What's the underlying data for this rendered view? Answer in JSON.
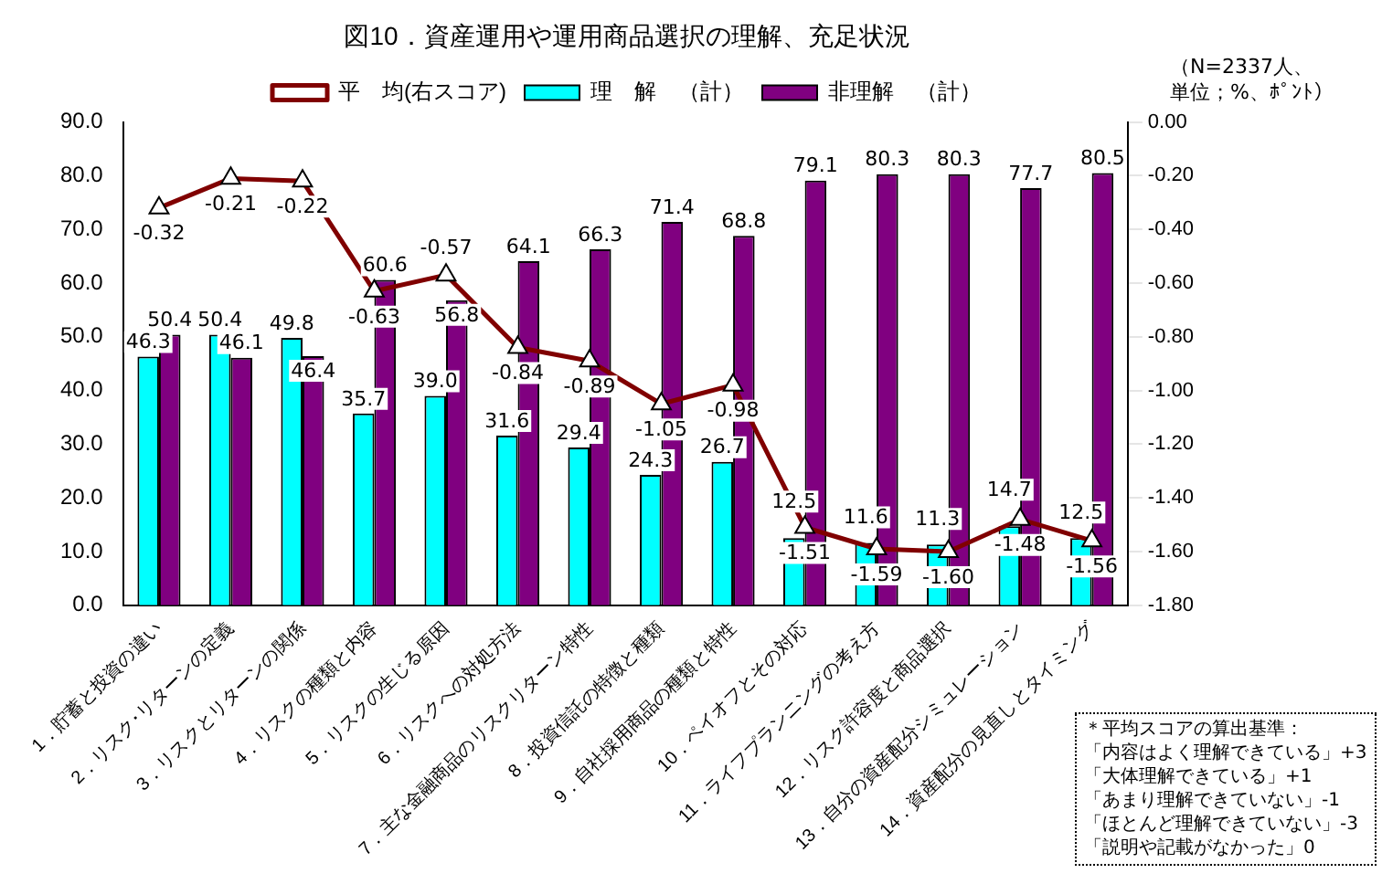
{
  "chart_data": {
    "type": "bar",
    "title": "図10．資産運用や運用商品選択の理解、充足状況",
    "categories": [
      "1．貯蓄と投資の違い",
      "2．リスク･リターンの定義",
      "3．リスクとリターンの関係",
      "4．リスクの種類と内容",
      "5．リスクの生じる原因",
      "6．リスクへの対処方法",
      "7．主な金融商品のリスクリターン特性",
      "8．投資信託の特徴と種類",
      "9．自社採用商品の種類と特性",
      "10．ペイオフとその対応",
      "11．ライフプランニングの考え方",
      "12．リスク許容度と商品選択",
      "13．自分の資産配分シミュレーション",
      "14．資産配分の見直しとタイミング"
    ],
    "series": [
      {
        "name": "理　解　（計）",
        "color": "#00ffff",
        "values": [
          46.3,
          50.4,
          49.8,
          35.7,
          39.0,
          31.6,
          29.4,
          24.3,
          26.7,
          12.5,
          11.6,
          11.3,
          14.7,
          12.5
        ],
        "value_labels": [
          "46.3",
          "50.4",
          "49.8",
          "35.7",
          "39.0",
          "31.6",
          "29.4",
          "24.3",
          "26.7",
          "12.5",
          "11.6",
          "11.3",
          "14.7",
          "12.5"
        ]
      },
      {
        "name": "非理解　（計）",
        "color": "#800080",
        "values": [
          50.4,
          46.1,
          46.4,
          60.6,
          56.8,
          64.1,
          66.3,
          71.4,
          68.8,
          79.1,
          80.3,
          80.3,
          77.7,
          80.5
        ],
        "value_labels": [
          "50.4",
          "46.1",
          "46.4",
          "60.6",
          "56.8",
          "64.1",
          "66.3",
          "71.4",
          "68.8",
          "79.1",
          "80.3",
          "80.3",
          "77.7",
          "80.5"
        ]
      },
      {
        "name": "平　均(右スコア)",
        "type": "line",
        "axis": "y2",
        "color": "#800000",
        "values": [
          -0.32,
          -0.21,
          -0.22,
          -0.63,
          -0.57,
          -0.84,
          -0.89,
          -1.05,
          -0.98,
          -1.51,
          -1.59,
          -1.6,
          -1.48,
          -1.56
        ],
        "value_labels": [
          "-0.32",
          "-0.21",
          "-0.22",
          "-0.63",
          "-0.57",
          "-0.84",
          "-0.89",
          "-1.05",
          "-0.98",
          "-1.51",
          "-1.59",
          "-1.60",
          "-1.48",
          "-1.56"
        ]
      }
    ],
    "ylim": [
      0,
      90
    ],
    "yticks": [
      {
        "value": 0,
        "label": "0.0"
      },
      {
        "value": 10,
        "label": "10.0"
      },
      {
        "value": 20,
        "label": "20.0"
      },
      {
        "value": 30,
        "label": "30.0"
      },
      {
        "value": 40,
        "label": "40.0"
      },
      {
        "value": 50,
        "label": "50.0"
      },
      {
        "value": 60,
        "label": "60.0"
      },
      {
        "value": 70,
        "label": "70.0"
      },
      {
        "value": 80,
        "label": "80.0"
      },
      {
        "value": 90,
        "label": "90.0"
      }
    ],
    "y2lim": [
      -1.8,
      0
    ],
    "y2ticks": [
      {
        "value": 0,
        "label": "0.00"
      },
      {
        "value": -0.2,
        "label": "-0.20"
      },
      {
        "value": -0.4,
        "label": "-0.40"
      },
      {
        "value": -0.6,
        "label": "-0.60"
      },
      {
        "value": -0.8,
        "label": "-0.80"
      },
      {
        "value": -1.0,
        "label": "-1.00"
      },
      {
        "value": -1.2,
        "label": "-1.20"
      },
      {
        "value": -1.4,
        "label": "-1.40"
      },
      {
        "value": -1.6,
        "label": "-1.60"
      },
      {
        "value": -1.8,
        "label": "-1.80"
      }
    ],
    "legend": "top",
    "grid": false,
    "marker": "triangle",
    "annotations": [
      "（N=2337人、",
      "単位；%、ﾎﾟﾝﾄ）",
      "＊平均スコアの算出基準：",
      "「内容はよく理解できている」+3",
      "「大体理解できている」+1",
      "「あまり理解できていない」-1",
      "「ほとんど理解できていない」-3",
      "「説明や記載がなかった」0"
    ]
  }
}
